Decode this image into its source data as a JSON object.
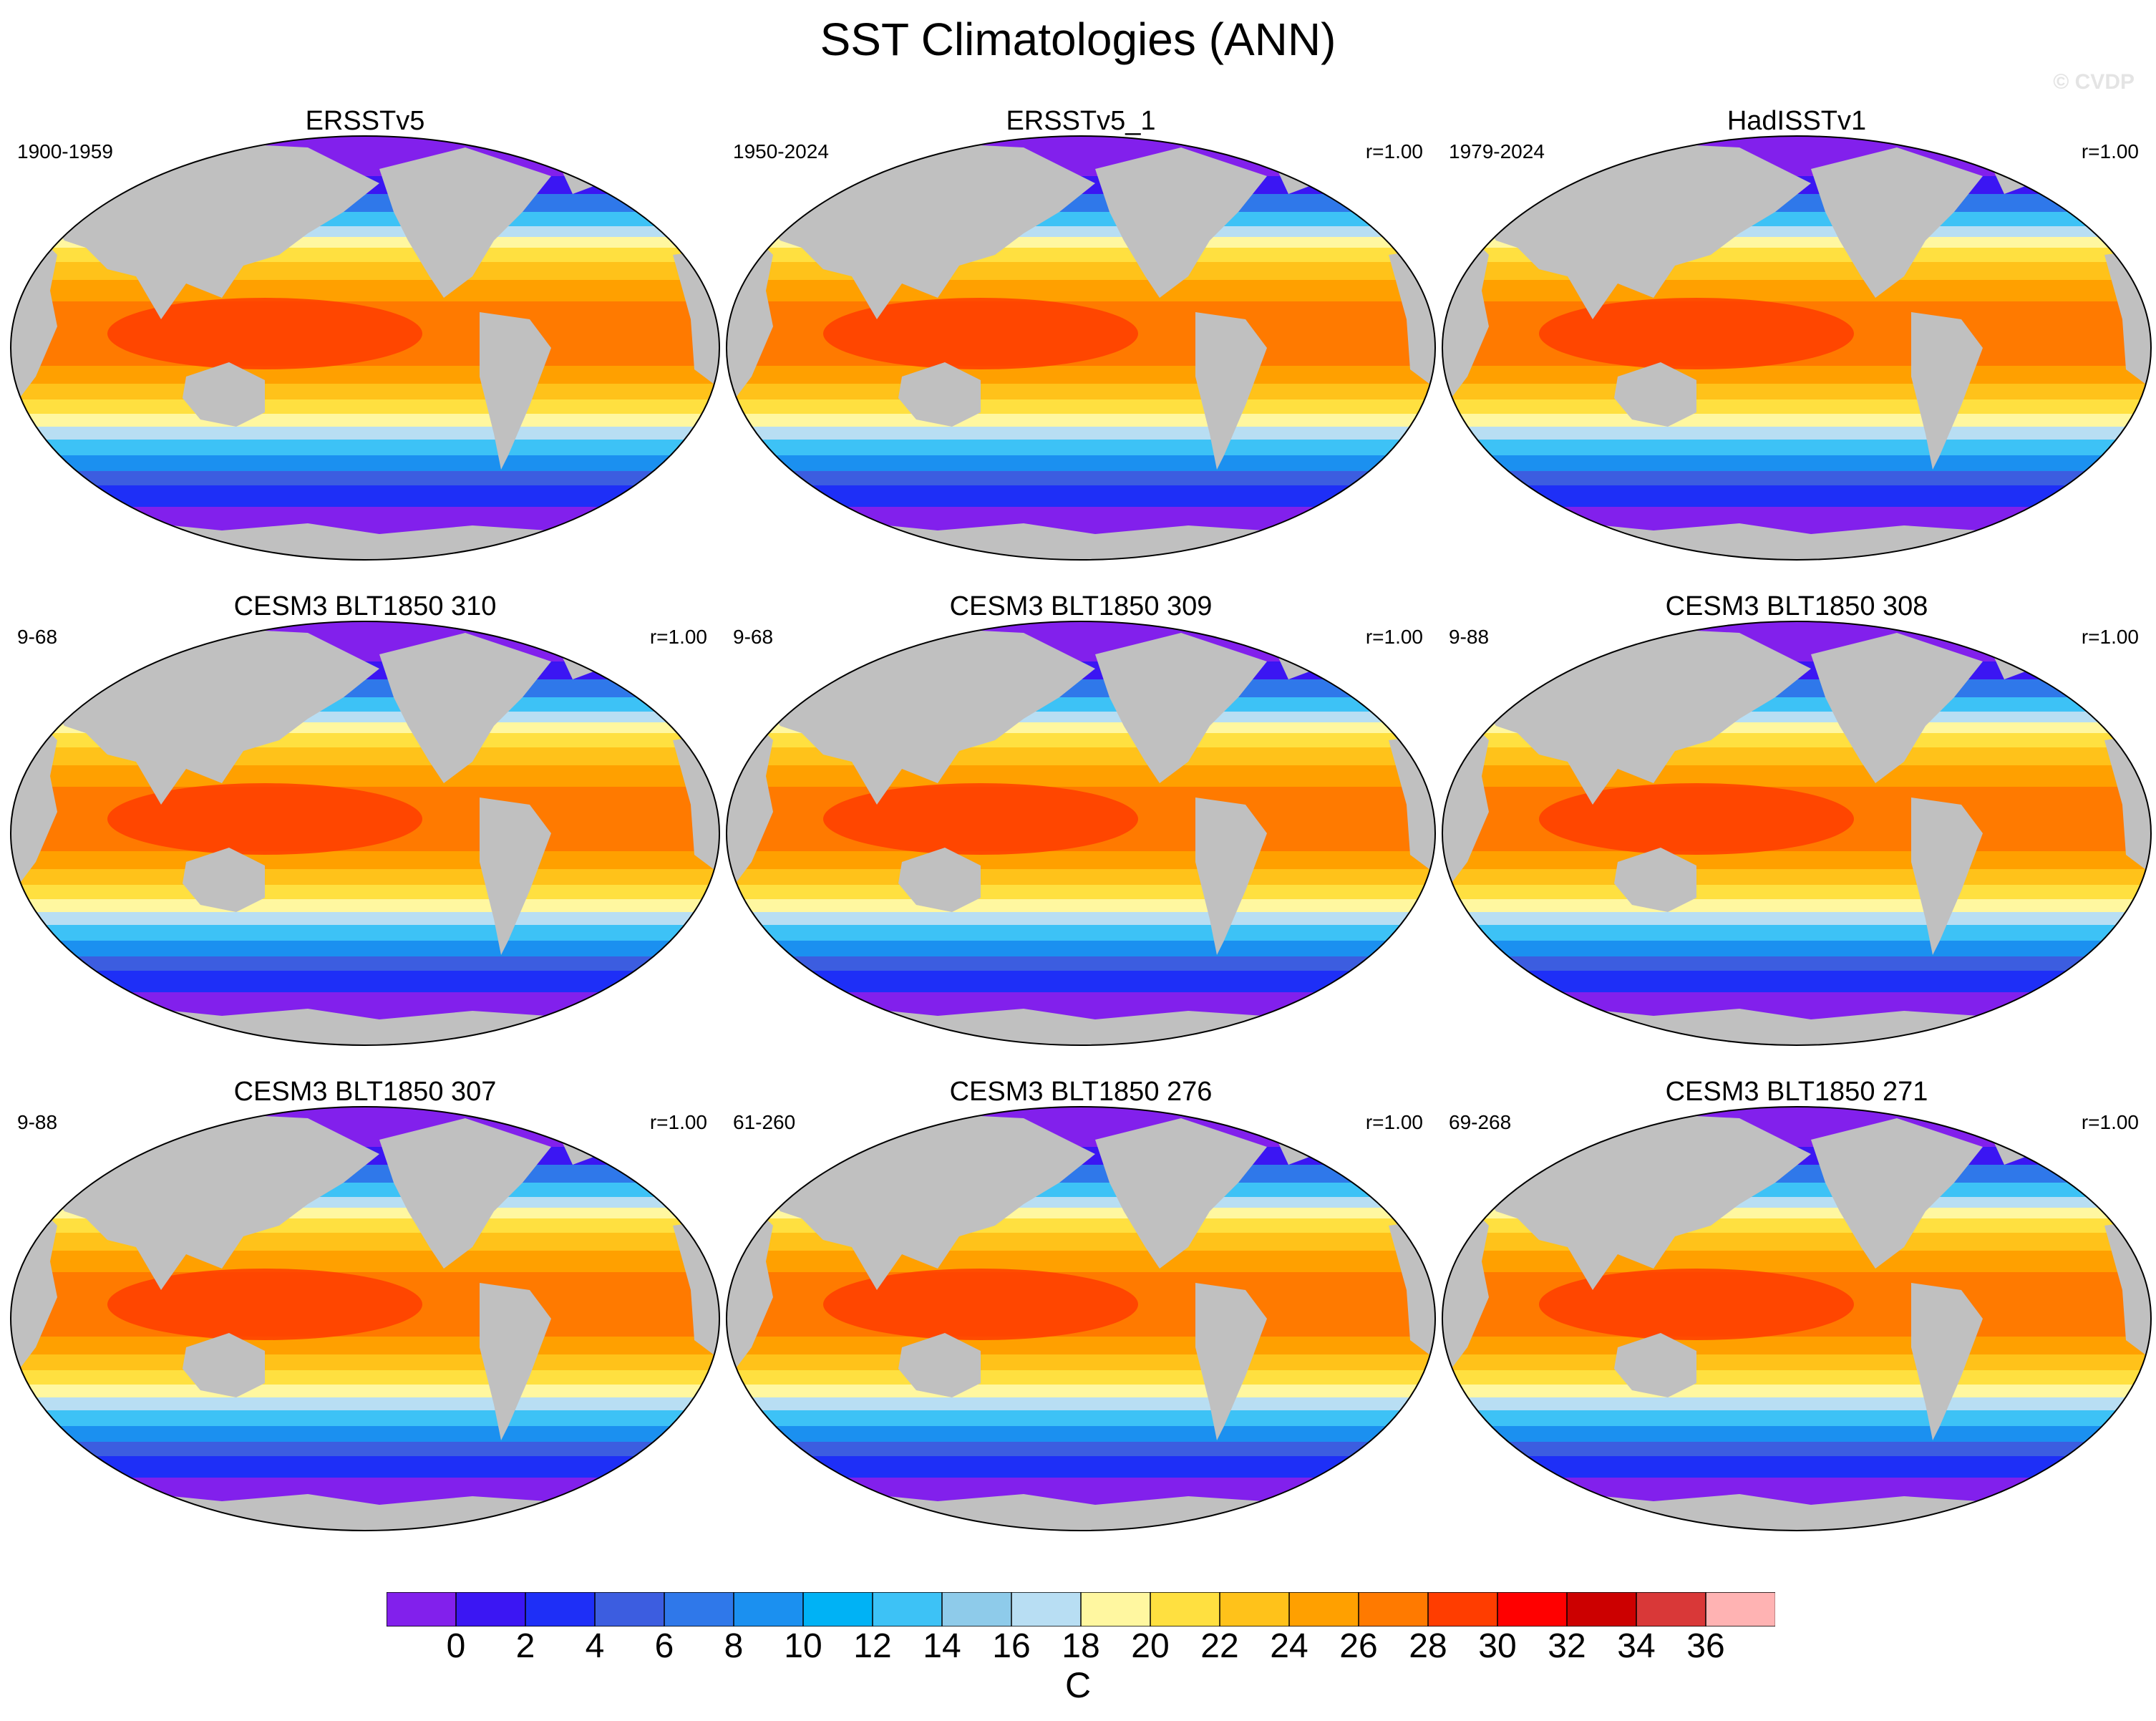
{
  "title": "SST Climatologies (ANN)",
  "watermark": "© CVDP",
  "units": "C",
  "colors": {
    "land": "#c0c0c0",
    "ocean_scale": [
      "#8220ec",
      "#3b16f3",
      "#1e2ff7",
      "#3c5de0",
      "#2f78ea",
      "#1b90f0",
      "#00b2f5",
      "#3dc2f6",
      "#8ecbea",
      "#b8def3",
      "#fff7a0",
      "#ffe040",
      "#ffc21a",
      "#ffa000",
      "#ff7a00",
      "#ff3d00",
      "#ff0000",
      "#cc0000",
      "#d93838",
      "#ffb3b3"
    ]
  },
  "colorbar": {
    "ticks": [
      "0",
      "2",
      "4",
      "6",
      "8",
      "10",
      "12",
      "14",
      "16",
      "18",
      "20",
      "22",
      "24",
      "26",
      "28",
      "30",
      "32",
      "34",
      "36"
    ]
  },
  "panels": [
    {
      "title": "ERSSTv5",
      "left_label": "1900-1959",
      "right_label": ""
    },
    {
      "title": "ERSSTv5_1",
      "left_label": "1950-2024",
      "right_label": "r=1.00"
    },
    {
      "title": "HadISSTv1",
      "left_label": "1979-2024",
      "right_label": "r=1.00"
    },
    {
      "title": "CESM3 BLT1850 310",
      "left_label": "9-68",
      "right_label": "r=1.00"
    },
    {
      "title": "CESM3 BLT1850 309",
      "left_label": "9-68",
      "right_label": "r=1.00"
    },
    {
      "title": "CESM3 BLT1850 308",
      "left_label": "9-88",
      "right_label": "r=1.00"
    },
    {
      "title": "CESM3 BLT1850 307",
      "left_label": "9-88",
      "right_label": "r=1.00"
    },
    {
      "title": "CESM3 BLT1850 276",
      "left_label": "61-260",
      "right_label": "r=1.00"
    },
    {
      "title": "CESM3 BLT1850 271",
      "left_label": "69-268",
      "right_label": "r=1.00"
    }
  ]
}
